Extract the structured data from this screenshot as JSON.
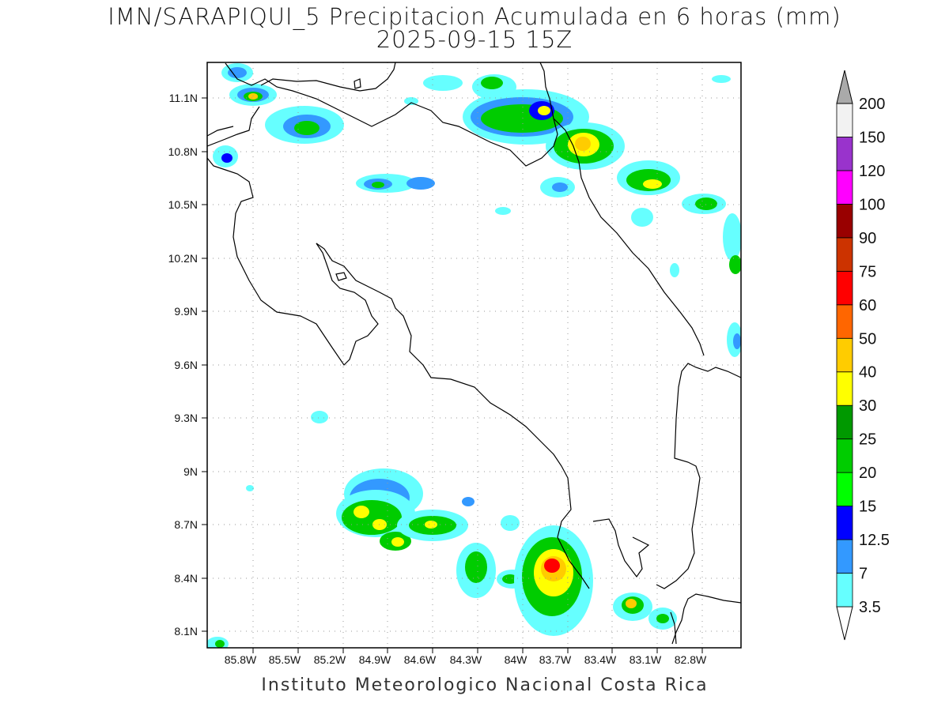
{
  "title": "IMN/SARAPIQUI_5 Precipitacion Acumulada en 6 horas (mm)",
  "subtitle": "2025-09-15 15Z",
  "footer": "Instituto Meteorologico Nacional Costa Rica",
  "map": {
    "lon_range": [
      -86.0,
      -82.5
    ],
    "lat_range": [
      8.0,
      11.3
    ],
    "lon_ticks": [
      "85.8W",
      "85.5W",
      "85.2W",
      "84.9W",
      "84.6W",
      "84.3W",
      "84W",
      "83.7W",
      "83.4W",
      "83.1W",
      "82.8W"
    ],
    "lat_ticks": [
      "11.1N",
      "10.8N",
      "10.5N",
      "10.2N",
      "9.9N",
      "9.6N",
      "9.3N",
      "9N",
      "8.7N",
      "8.4N",
      "8.1N"
    ]
  },
  "colorbar": {
    "levels": [
      "3.5",
      "7",
      "12.5",
      "15",
      "20",
      "25",
      "30",
      "40",
      "50",
      "60",
      "75",
      "90",
      "100",
      "120",
      "150",
      "200"
    ],
    "colors": [
      "#66ffff",
      "#3399ff",
      "#0000ff",
      "#00ff00",
      "#00cc00",
      "#009900",
      "#ffff00",
      "#ffcc00",
      "#ff6600",
      "#ff0000",
      "#cc3300",
      "#990000",
      "#ff00ff",
      "#9933cc",
      "#f2f2f2",
      "#aaaaaa"
    ]
  }
}
